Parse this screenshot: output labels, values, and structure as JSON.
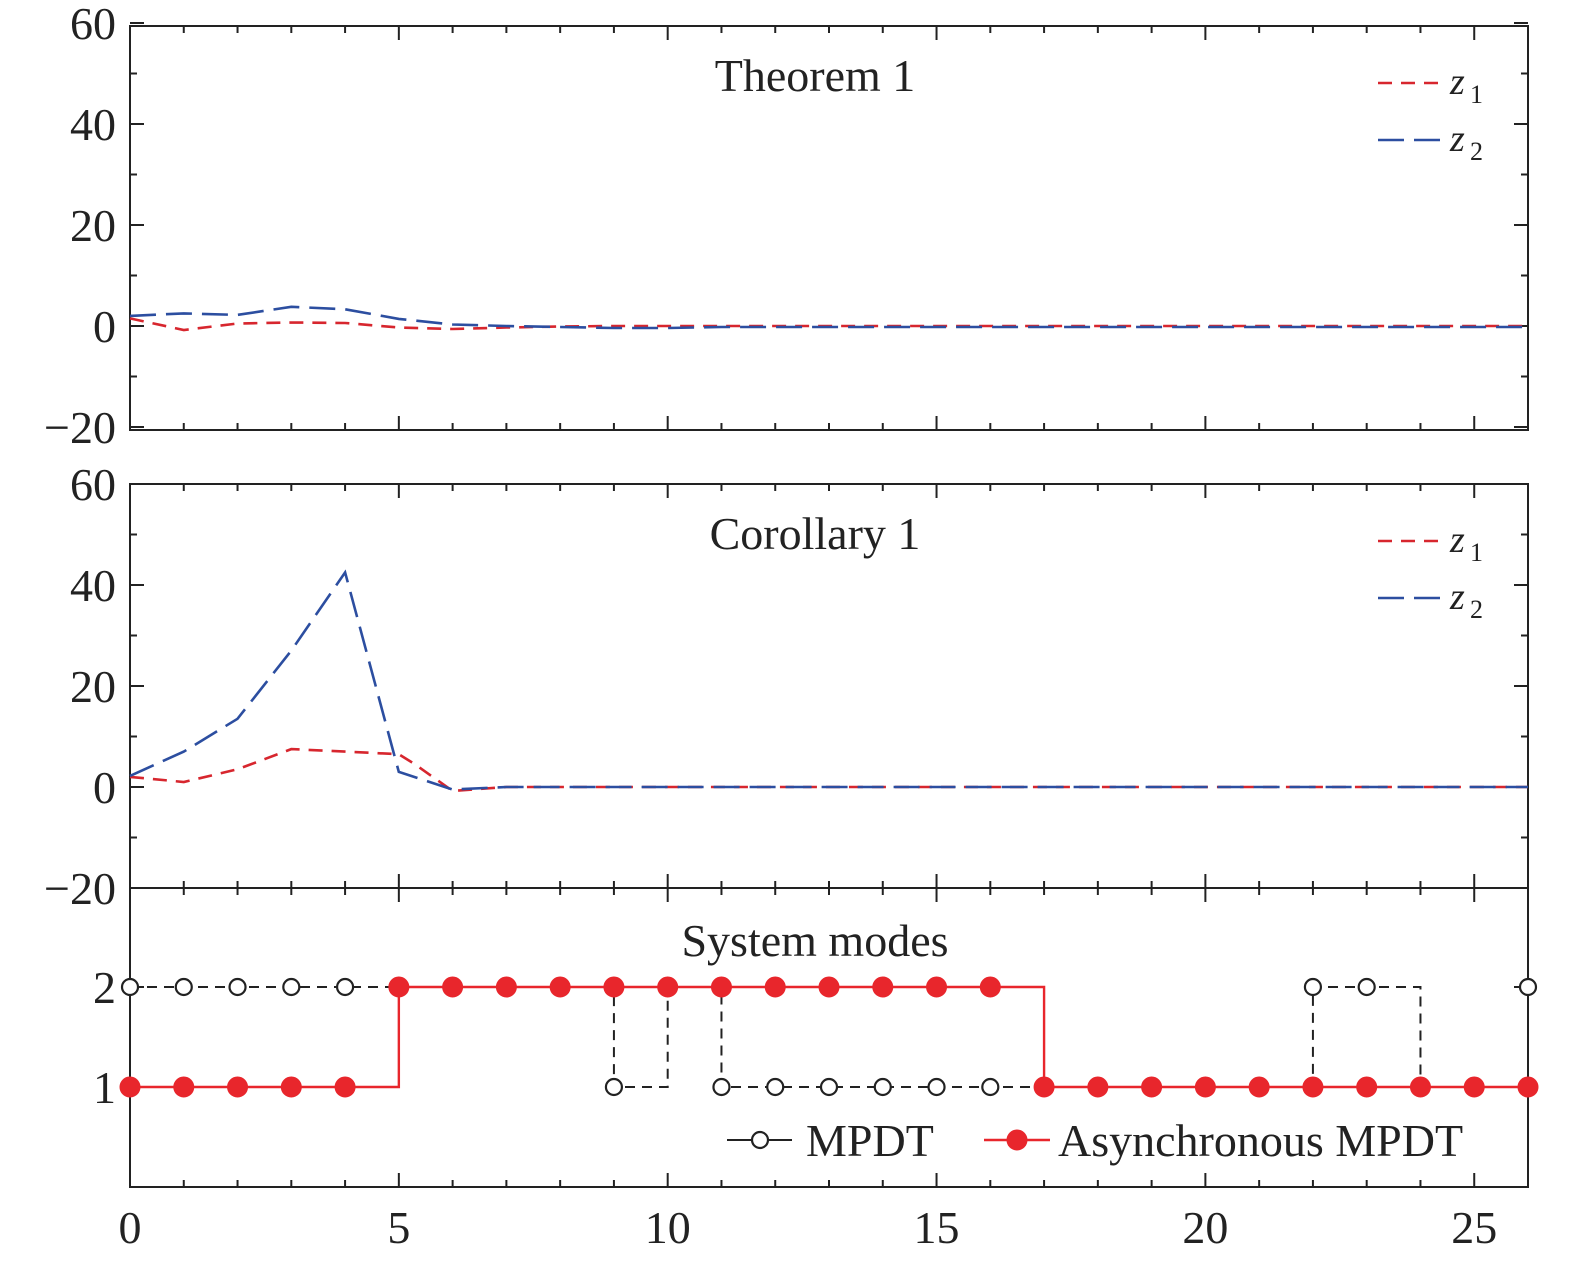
{
  "chart_data": [
    {
      "type": "line",
      "title": "Theorem 1",
      "xlim": [
        0,
        26
      ],
      "ylim": [
        -20,
        60
      ],
      "yticks": [
        "−20",
        "0",
        "20",
        "40",
        "60"
      ],
      "grid": false,
      "legend_placement": "top-right",
      "series": [
        {
          "name": "z",
          "subscript": "1",
          "color": "#d7262e",
          "x": [
            0,
            1,
            2,
            3,
            4,
            5,
            6,
            7,
            8,
            9,
            10,
            11,
            12,
            13,
            14,
            15,
            16,
            17,
            18,
            19,
            20,
            21,
            22,
            23,
            24,
            25,
            26
          ],
          "y": [
            1.5,
            -0.8,
            0.5,
            0.7,
            0.6,
            -0.3,
            -0.6,
            -0.3,
            -0.1,
            0,
            0,
            0,
            0,
            0,
            0,
            0,
            0,
            0,
            0,
            0,
            0,
            0,
            0,
            0,
            0,
            0,
            0
          ]
        },
        {
          "name": "z",
          "subscript": "2",
          "color": "#2c4ea0",
          "x": [
            0,
            1,
            2,
            3,
            4,
            5,
            6,
            7,
            8,
            9,
            10,
            11,
            12,
            13,
            14,
            15,
            16,
            17,
            18,
            19,
            20,
            21,
            22,
            23,
            24,
            25,
            26
          ],
          "y": [
            2,
            2.5,
            2.2,
            3.8,
            3.3,
            1.4,
            0.3,
            0,
            -0.2,
            -0.4,
            -0.4,
            -0.2,
            -0.2,
            -0.2,
            -0.2,
            -0.2,
            -0.2,
            -0.2,
            -0.2,
            -0.2,
            -0.2,
            -0.2,
            -0.2,
            -0.2,
            -0.2,
            -0.2,
            -0.2
          ]
        }
      ]
    },
    {
      "type": "line",
      "title": "Corollary 1",
      "xlim": [
        0,
        26
      ],
      "ylim": [
        -20,
        60
      ],
      "yticks": [
        "−20",
        "0",
        "20",
        "40",
        "60"
      ],
      "grid": false,
      "legend_placement": "top-right",
      "series": [
        {
          "name": "z",
          "subscript": "1",
          "color": "#d7262e",
          "x": [
            0,
            1,
            2,
            3,
            4,
            5,
            5.3,
            6,
            7,
            8,
            9,
            10,
            11,
            12,
            13,
            14,
            15,
            16,
            17,
            18,
            19,
            20,
            21,
            22,
            23,
            24,
            25,
            26
          ],
          "y": [
            2,
            1,
            3.5,
            7.5,
            7,
            6.5,
            4.5,
            -0.8,
            0,
            0,
            0,
            0,
            0,
            0,
            0,
            0,
            0,
            0,
            0,
            0,
            0,
            0,
            0,
            0,
            0,
            0,
            0,
            0
          ]
        },
        {
          "name": "z",
          "subscript": "2",
          "color": "#2c4ea0",
          "x": [
            0,
            1,
            2,
            3,
            4,
            5,
            6,
            7,
            8,
            9,
            10,
            11,
            12,
            13,
            14,
            15,
            16,
            17,
            18,
            19,
            20,
            21,
            22,
            23,
            24,
            25,
            26
          ],
          "y": [
            2.2,
            7,
            13.5,
            27,
            42.5,
            3,
            -0.5,
            0,
            0,
            0,
            0,
            0,
            0,
            0,
            0,
            0,
            0,
            0,
            0,
            0,
            0,
            0,
            0,
            0,
            0,
            0,
            0
          ]
        }
      ]
    },
    {
      "type": "line",
      "step": true,
      "title": "System modes",
      "xlim": [
        0,
        26
      ],
      "ylim": [
        0,
        3
      ],
      "yticks": [
        "1",
        "2"
      ],
      "xticks": [
        "0",
        "5",
        "10",
        "15",
        "20",
        "25"
      ],
      "grid": false,
      "legend_placement": "bottom-right",
      "series": [
        {
          "name": "MPDT",
          "color": "#222222",
          "marker": "open-circle",
          "x": [
            0,
            1,
            2,
            3,
            4,
            5,
            6,
            7,
            8,
            9,
            10,
            11,
            12,
            13,
            14,
            15,
            16,
            17,
            18,
            19,
            20,
            21,
            22,
            23,
            24,
            25,
            26
          ],
          "y": [
            2,
            2,
            2,
            2,
            2,
            2,
            2,
            2,
            2,
            1,
            2,
            1,
            1,
            1,
            1,
            1,
            1,
            1,
            1,
            1,
            1,
            1,
            2,
            2,
            1,
            1,
            2
          ]
        },
        {
          "name": "Asynchronous MPDT",
          "color": "#e8262c",
          "marker": "filled-circle",
          "x": [
            0,
            1,
            2,
            3,
            4,
            5,
            6,
            7,
            8,
            9,
            10,
            11,
            12,
            13,
            14,
            15,
            16,
            17,
            18,
            19,
            20,
            21,
            22,
            23,
            24,
            25,
            26
          ],
          "y": [
            1,
            1,
            1,
            1,
            1,
            2,
            2,
            2,
            2,
            2,
            2,
            2,
            2,
            2,
            2,
            2,
            2,
            1,
            1,
            1,
            1,
            1,
            1,
            1,
            1,
            1,
            1
          ]
        }
      ]
    }
  ]
}
